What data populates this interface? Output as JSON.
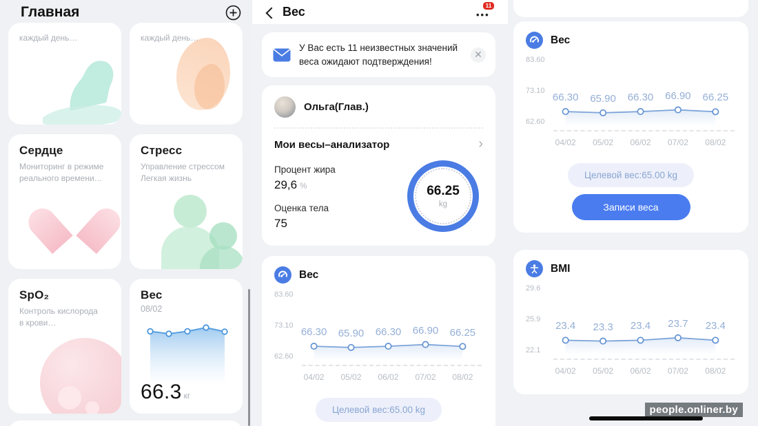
{
  "watermark": "people.onliner.by",
  "colors": {
    "accent": "#4a7cf0",
    "line": "#7ba3d8",
    "badge": "#e02b20",
    "label_blue": "#94afd6"
  },
  "home": {
    "title": "Главная",
    "top_cards": [
      {
        "subtitle": "каждый день…"
      },
      {
        "subtitle": "каждый день…"
      }
    ],
    "heart_card": {
      "title": "Сердце",
      "subtitle": "Мониторинг в режиме\nреального времени…"
    },
    "stress_card": {
      "title": "Стресс",
      "subtitle": "Управление стрессом\nЛегкая жизнь"
    },
    "spo2_card": {
      "title": "SpO₂",
      "subtitle": "Контроль кислорода\nв крови…"
    },
    "weight_card": {
      "title": "Вес",
      "date": "08/02",
      "value": "66.3",
      "unit": "кг"
    }
  },
  "detail": {
    "title": "Вес",
    "menu_badge": "11",
    "menu_dots": "•••",
    "notification_text": "У Вас есть 11 неизвестных значений веса ожидают подтверждения!",
    "close_icon": "✕",
    "profile_name": "Ольга(Глав.)",
    "device_label": "Мои весы–анализатор",
    "chevron": "›",
    "fat_label": "Процент жира",
    "fat_value": "29,6",
    "fat_unit": "%",
    "body_label": "Оценка тела",
    "body_value": "75",
    "gauge_value": "66.25",
    "gauge_unit": "kg",
    "target_button": "Целевой вес:65.00 kg",
    "records_button": "Записи веса"
  },
  "weight_chart": {
    "title": "Вес",
    "y_labels": [
      "83.60",
      "73.10",
      "62.60"
    ],
    "y_max": 83.6,
    "y_min": 62.6,
    "values": [
      66.3,
      65.9,
      66.3,
      66.9,
      66.25
    ],
    "value_labels": [
      "66.30",
      "65.90",
      "66.30",
      "66.90",
      "66.25"
    ],
    "x_labels": [
      "04/02",
      "05/02",
      "06/02",
      "07/02",
      "08/02"
    ]
  },
  "bmi_chart": {
    "title": "BMI",
    "y_labels": [
      "29.6",
      "25.9",
      "22.1"
    ],
    "y_max": 29.6,
    "y_min": 22.1,
    "values": [
      23.4,
      23.3,
      23.4,
      23.7,
      23.4
    ],
    "value_labels": [
      "23.4",
      "23.3",
      "23.4",
      "23.7",
      "23.4"
    ],
    "x_labels": [
      "04/02",
      "05/02",
      "06/02",
      "07/02",
      "08/02"
    ]
  },
  "chart_data": [
    {
      "type": "line",
      "title": "Вес",
      "x": [
        "04/02",
        "05/02",
        "06/02",
        "07/02",
        "08/02"
      ],
      "series": [
        {
          "name": "Вес, kg",
          "values": [
            66.3,
            65.9,
            66.3,
            66.9,
            66.25
          ]
        }
      ],
      "y_axis_ticks": [
        83.6,
        73.1,
        62.6
      ],
      "ylim": [
        62.6,
        83.6
      ],
      "grid": false,
      "legend": "none",
      "annotations": [
        "Целевой вес:65.00 kg"
      ]
    },
    {
      "type": "line",
      "title": "BMI",
      "x": [
        "04/02",
        "05/02",
        "06/02",
        "07/02",
        "08/02"
      ],
      "series": [
        {
          "name": "BMI",
          "values": [
            23.4,
            23.3,
            23.4,
            23.7,
            23.4
          ]
        }
      ],
      "y_axis_ticks": [
        29.6,
        25.9,
        22.1
      ],
      "ylim": [
        22.1,
        29.6
      ],
      "grid": false,
      "legend": "none"
    },
    {
      "type": "area",
      "title": "Вес (мини-карточка, Главная)",
      "x": [
        "04/02",
        "05/02",
        "06/02",
        "07/02",
        "08/02"
      ],
      "series": [
        {
          "name": "Вес, кг",
          "values": [
            66.3,
            65.9,
            66.3,
            66.9,
            66.25
          ]
        }
      ],
      "annotations": [
        "66.3 кг",
        "08/02"
      ]
    }
  ]
}
